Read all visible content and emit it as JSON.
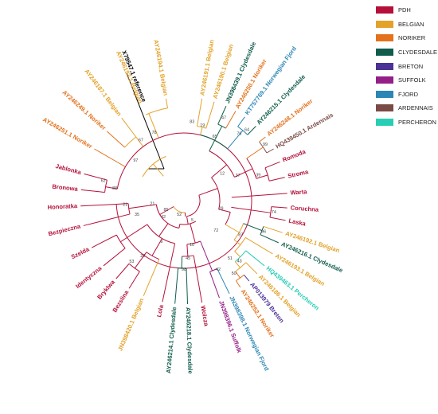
{
  "legend": [
    {
      "label": "PDH",
      "color": "#b5103a"
    },
    {
      "label": "BELGIAN",
      "color": "#e3a22a"
    },
    {
      "label": "NORIKER",
      "color": "#e4711c"
    },
    {
      "label": "CLYDESDALE",
      "color": "#0f5c4b"
    },
    {
      "label": "BRETON",
      "color": "#4b3296"
    },
    {
      "label": "SUFFOLK",
      "color": "#931f87"
    },
    {
      "label": "FJORD",
      "color": "#2b86b5"
    },
    {
      "label": "ARDENNAIS",
      "color": "#7a4a45"
    },
    {
      "label": "PERCHERON",
      "color": "#27cdb4"
    }
  ],
  "reference_color": "#000000",
  "tips": [
    {
      "label": "X79547.1 reference",
      "group": "reference"
    },
    {
      "label": "AY246194.1 Belgian",
      "group": "BELGIAN"
    },
    {
      "label": "AY246193.1 Belgian",
      "group": "BELGIAN"
    },
    {
      "label": "AY246187.1 Belgian",
      "group": "BELGIAN"
    },
    {
      "label": "AY246249.1 Noriker",
      "group": "NORIKER"
    },
    {
      "label": "AY246251.1 Noriker",
      "group": "NORIKER"
    },
    {
      "label": "Jablonka",
      "group": "PDH"
    },
    {
      "label": "Bronowa",
      "group": "PDH"
    },
    {
      "label": "Honoratka",
      "group": "PDH"
    },
    {
      "label": "Bezpieczna",
      "group": "PDH"
    },
    {
      "label": "Szelda",
      "group": "PDH"
    },
    {
      "label": "Identyczna",
      "group": "PDH"
    },
    {
      "label": "Bryklwa",
      "group": "PDH"
    },
    {
      "label": "Bezslina",
      "group": "PDH"
    },
    {
      "label": "JN398420.1 Belgian",
      "group": "BELGIAN"
    },
    {
      "label": "Lola",
      "group": "PDH"
    },
    {
      "label": "AY246214.1 Clydesdale",
      "group": "CLYDESDALE"
    },
    {
      "label": "AY246218.1 Clydesdale",
      "group": "CLYDESDALE"
    },
    {
      "label": "Wolcza",
      "group": "PDH"
    },
    {
      "label": "JN398396.1 Suffolk",
      "group": "SUFFOLK"
    },
    {
      "label": "JN398398.1 Norwegian Fjord",
      "group": "FJORD"
    },
    {
      "label": "AY246252.1 Noriker",
      "group": "NORIKER"
    },
    {
      "label": "AP013979 Breton",
      "group": "BRETON"
    },
    {
      "label": "AY246186.1 Belgian",
      "group": "BELGIAN"
    },
    {
      "label": "HQ439463.1 Percheron",
      "group": "PERCHERON"
    },
    {
      "label": "AY246193.1 Belgian",
      "group": "BELGIAN"
    },
    {
      "label": "AY246216.1 Clydesdale",
      "group": "CLYDESDALE"
    },
    {
      "label": "AY246192.1 Belgian",
      "group": "BELGIAN"
    },
    {
      "label": "Laska",
      "group": "PDH"
    },
    {
      "label": "Coruchna",
      "group": "PDH"
    },
    {
      "label": "Warta",
      "group": "PDH"
    },
    {
      "label": "Stroma",
      "group": "PDH"
    },
    {
      "label": "Romoda",
      "group": "PDH"
    },
    {
      "label": "HQ439450.1 Ardennais",
      "group": "ARDENNAIS"
    },
    {
      "label": "AY246248.1 Noriker",
      "group": "NORIKER"
    },
    {
      "label": "AY246215.1 Clydesdale",
      "group": "CLYDESDALE"
    },
    {
      "label": "KT757769.1 Norwegian Fjord",
      "group": "FJORD"
    },
    {
      "label": "AY246250.1 Noriker",
      "group": "NORIKER"
    },
    {
      "label": "JN398439.1 Clydesdale",
      "group": "CLYDESDALE"
    },
    {
      "label": "AY246190.1 Belgian",
      "group": "BELGIAN"
    },
    {
      "label": "AY246191.1 Belgian",
      "group": "BELGIAN"
    }
  ],
  "bootstrap": [
    "78",
    "67",
    "97",
    "62",
    "88",
    "21",
    "35",
    "21",
    "53",
    "20",
    "9",
    "85",
    "42",
    "52",
    "5",
    "98",
    "45",
    "10",
    "42",
    "72",
    "43",
    "96",
    "87",
    "51",
    "50",
    "74",
    "29",
    "39",
    "37",
    "12",
    "99",
    "76",
    "65",
    "19",
    "47",
    "83",
    "64"
  ]
}
